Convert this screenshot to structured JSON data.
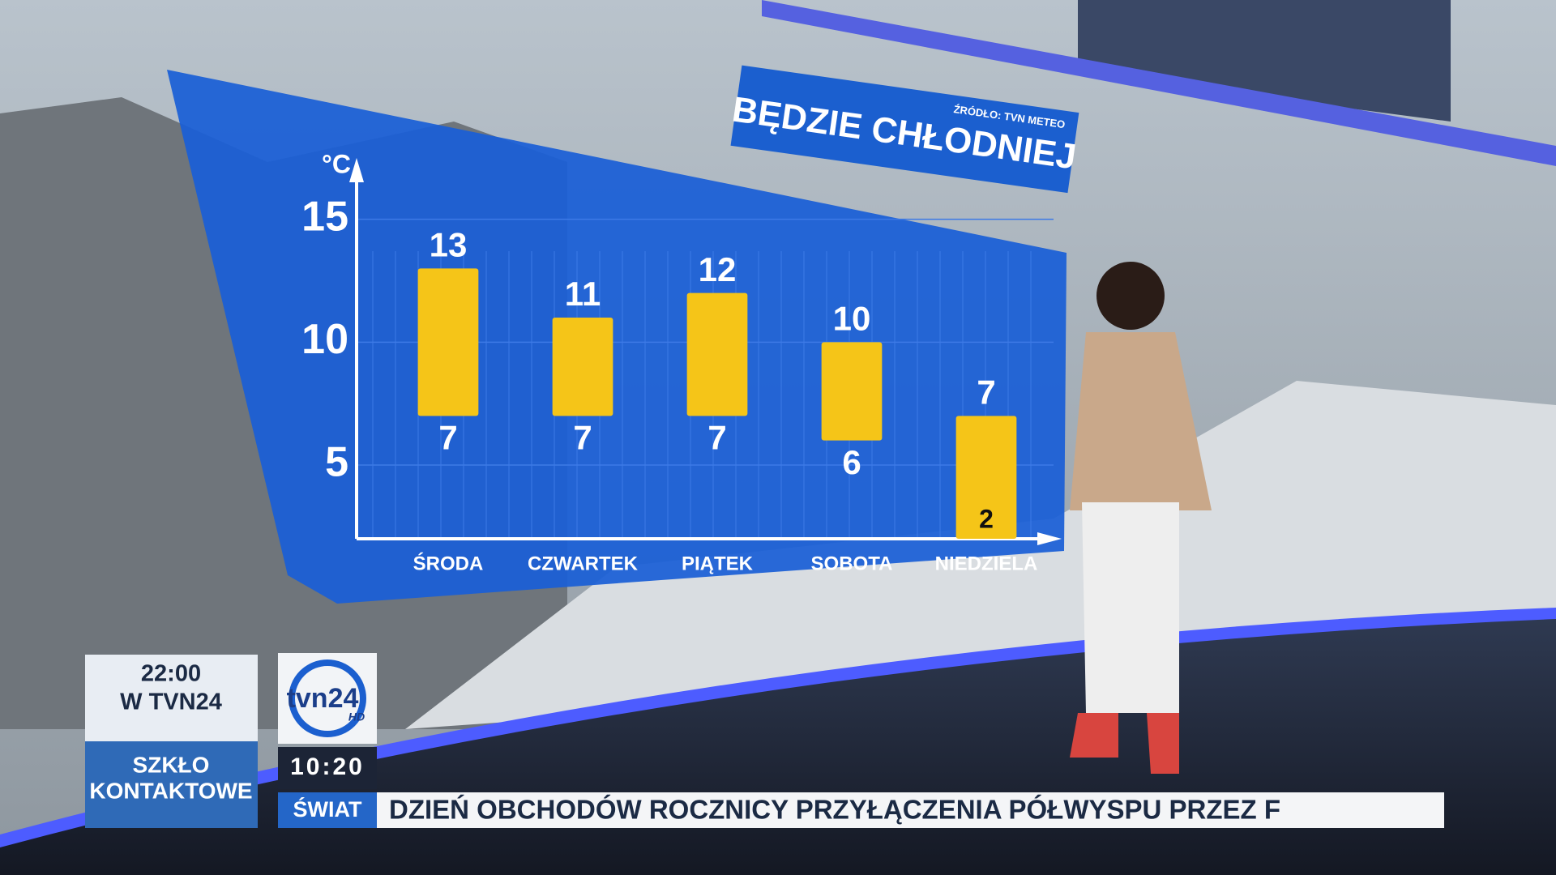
{
  "chart_data": {
    "type": "floating_bar",
    "title": "BĘDZIE CHŁODNIEJ",
    "source": "ŹRÓDŁO: TVN METEO",
    "y_unit": "°C",
    "categories": [
      "ŚRODA",
      "CZWARTEK",
      "PIĄTEK",
      "SOBOTA",
      "NIEDZIELA"
    ],
    "high": [
      13,
      11,
      12,
      10,
      7
    ],
    "low": [
      7,
      7,
      7,
      6,
      2
    ],
    "color": "#f5c518",
    "ylim": [
      2,
      17
    ],
    "yticks": [
      5,
      10,
      15
    ],
    "grid": true
  },
  "overlay": {
    "promo": {
      "time": "22:00",
      "channel": "W TVN24",
      "show_line1": "SZKŁO",
      "show_line2": "KONTAKTOWE"
    },
    "logo": {
      "name": "tvn24",
      "hd": "HD"
    },
    "clock": "10:20",
    "ticker": {
      "section": "ŚWIAT",
      "text": "DZIEŃ OBCHODÓW ROCZNICY PRZYŁĄCZENIA PÓŁWYSPU PRZEZ F"
    }
  }
}
